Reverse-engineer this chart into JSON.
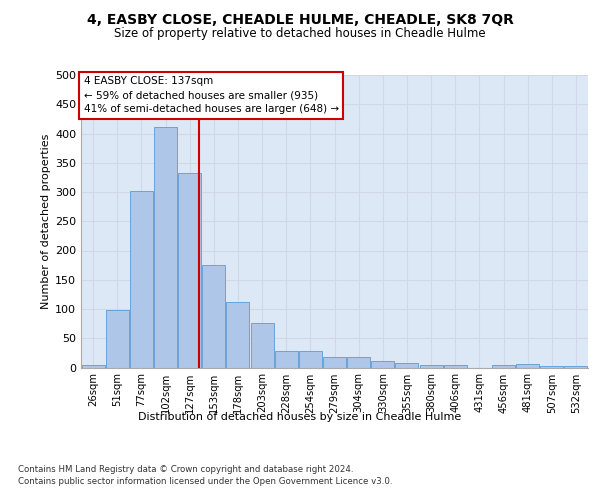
{
  "title": "4, EASBY CLOSE, CHEADLE HULME, CHEADLE, SK8 7QR",
  "subtitle": "Size of property relative to detached houses in Cheadle Hulme",
  "xlabel": "Distribution of detached houses by size in Cheadle Hulme",
  "ylabel": "Number of detached properties",
  "bin_labels": [
    "26sqm",
    "51sqm",
    "77sqm",
    "102sqm",
    "127sqm",
    "153sqm",
    "178sqm",
    "203sqm",
    "228sqm",
    "254sqm",
    "279sqm",
    "304sqm",
    "330sqm",
    "355sqm",
    "380sqm",
    "406sqm",
    "431sqm",
    "456sqm",
    "481sqm",
    "507sqm",
    "532sqm"
  ],
  "bar_values": [
    5,
    99,
    302,
    411,
    333,
    176,
    112,
    76,
    29,
    29,
    18,
    18,
    11,
    7,
    4,
    5,
    0,
    4,
    6,
    3,
    2
  ],
  "bar_color": "#aec6e8",
  "bar_edge_color": "#5b9bd5",
  "property_size": 137,
  "property_label": "4 EASBY CLOSE: 137sqm",
  "annotation_line1": "← 59% of detached houses are smaller (935)",
  "annotation_line2": "41% of semi-detached houses are larger (648) →",
  "vline_x": 137,
  "vline_color": "#cc0000",
  "annotation_box_color": "#ffffff",
  "annotation_box_edge": "#cc0000",
  "grid_color": "#d0d8e8",
  "background_color": "#dce8f5",
  "footer1": "Contains HM Land Registry data © Crown copyright and database right 2024.",
  "footer2": "Contains public sector information licensed under the Open Government Licence v3.0.",
  "ylim": [
    0,
    500
  ],
  "yticks": [
    0,
    50,
    100,
    150,
    200,
    250,
    300,
    350,
    400,
    450,
    500
  ]
}
